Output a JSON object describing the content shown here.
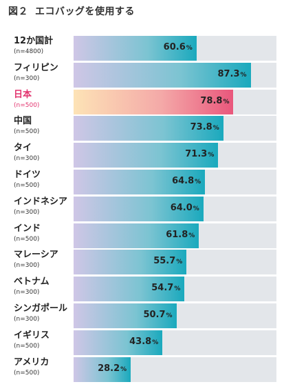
{
  "title": {
    "fig_num": "図２",
    "text": "エコバッグを使用する"
  },
  "percent_unit": "%",
  "colors": {
    "highlight_text": "#e2336e",
    "bar_start": "#cfc6e6",
    "bar_end": "#1aa9bd",
    "highlight_bar_start": "#fde3b6",
    "highlight_bar_end": "#e9577c",
    "track": "#e3e6ea"
  },
  "chart_data": {
    "type": "bar",
    "orientation": "horizontal",
    "title": "エコバッグを使用する",
    "xlim": [
      0,
      100
    ],
    "unit": "%",
    "grid": false,
    "categories": [
      "12か国計",
      "フィリピン",
      "日本",
      "中国",
      "タイ",
      "ドイツ",
      "インドネシア",
      "インド",
      "マレーシア",
      "ベトナム",
      "シンガポール",
      "イギリス",
      "アメリカ"
    ],
    "sample_sizes": [
      "(n=4800)",
      "(n=300)",
      "(n=500)",
      "(n=500)",
      "(n=300)",
      "(n=500)",
      "(n=300)",
      "(n=500)",
      "(n=300)",
      "(n=300)",
      "(n=300)",
      "(n=500)",
      "(n=500)"
    ],
    "values": [
      60.6,
      87.3,
      78.8,
      73.8,
      71.3,
      64.8,
      64.0,
      61.8,
      55.7,
      54.7,
      50.7,
      43.8,
      28.2
    ],
    "value_labels": [
      "60.6",
      "87.3",
      "78.8",
      "73.8",
      "71.3",
      "64.8",
      "64.0",
      "61.8",
      "55.7",
      "54.7",
      "50.7",
      "43.8",
      "28.2"
    ],
    "highlight": "日本"
  }
}
